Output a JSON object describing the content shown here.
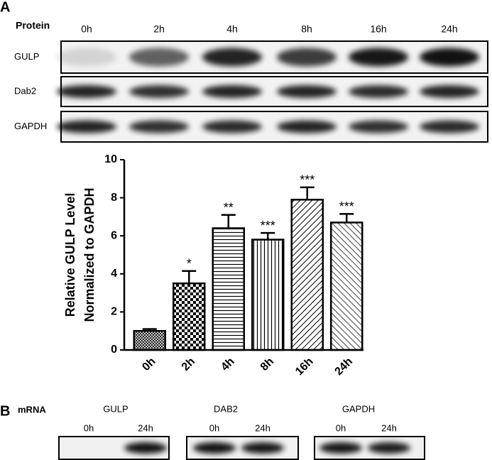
{
  "panel_a": {
    "label": "A",
    "header": "Protein",
    "lanes": [
      "0h",
      "2h",
      "4h",
      "8h",
      "16h",
      "24h"
    ],
    "rows": [
      "GULP",
      "Dab2",
      "GAPDH"
    ]
  },
  "chart_data": {
    "type": "bar",
    "ylabel": [
      "Relative GULP Level",
      "Normalized to GAPDH"
    ],
    "categories": [
      "0h",
      "2h",
      "4h",
      "8h",
      "16h",
      "24h"
    ],
    "values": [
      1.0,
      3.5,
      6.4,
      5.8,
      7.9,
      6.7
    ],
    "errors": [
      0.1,
      0.65,
      0.7,
      0.35,
      0.65,
      0.45
    ],
    "significance": [
      null,
      "*",
      "**",
      "***",
      "***",
      "***"
    ],
    "ylim": [
      0,
      10
    ],
    "yticks": [
      0,
      2,
      4,
      6,
      8,
      10
    ],
    "color": "#000000"
  },
  "panel_b": {
    "label": "B",
    "header": "mRNA",
    "groups": [
      {
        "name": "GULP",
        "lanes": [
          "0h",
          "24h"
        ]
      },
      {
        "name": "DAB2",
        "lanes": [
          "0h",
          "24h"
        ]
      },
      {
        "name": "GAPDH",
        "lanes": [
          "0h",
          "24h"
        ]
      }
    ]
  }
}
